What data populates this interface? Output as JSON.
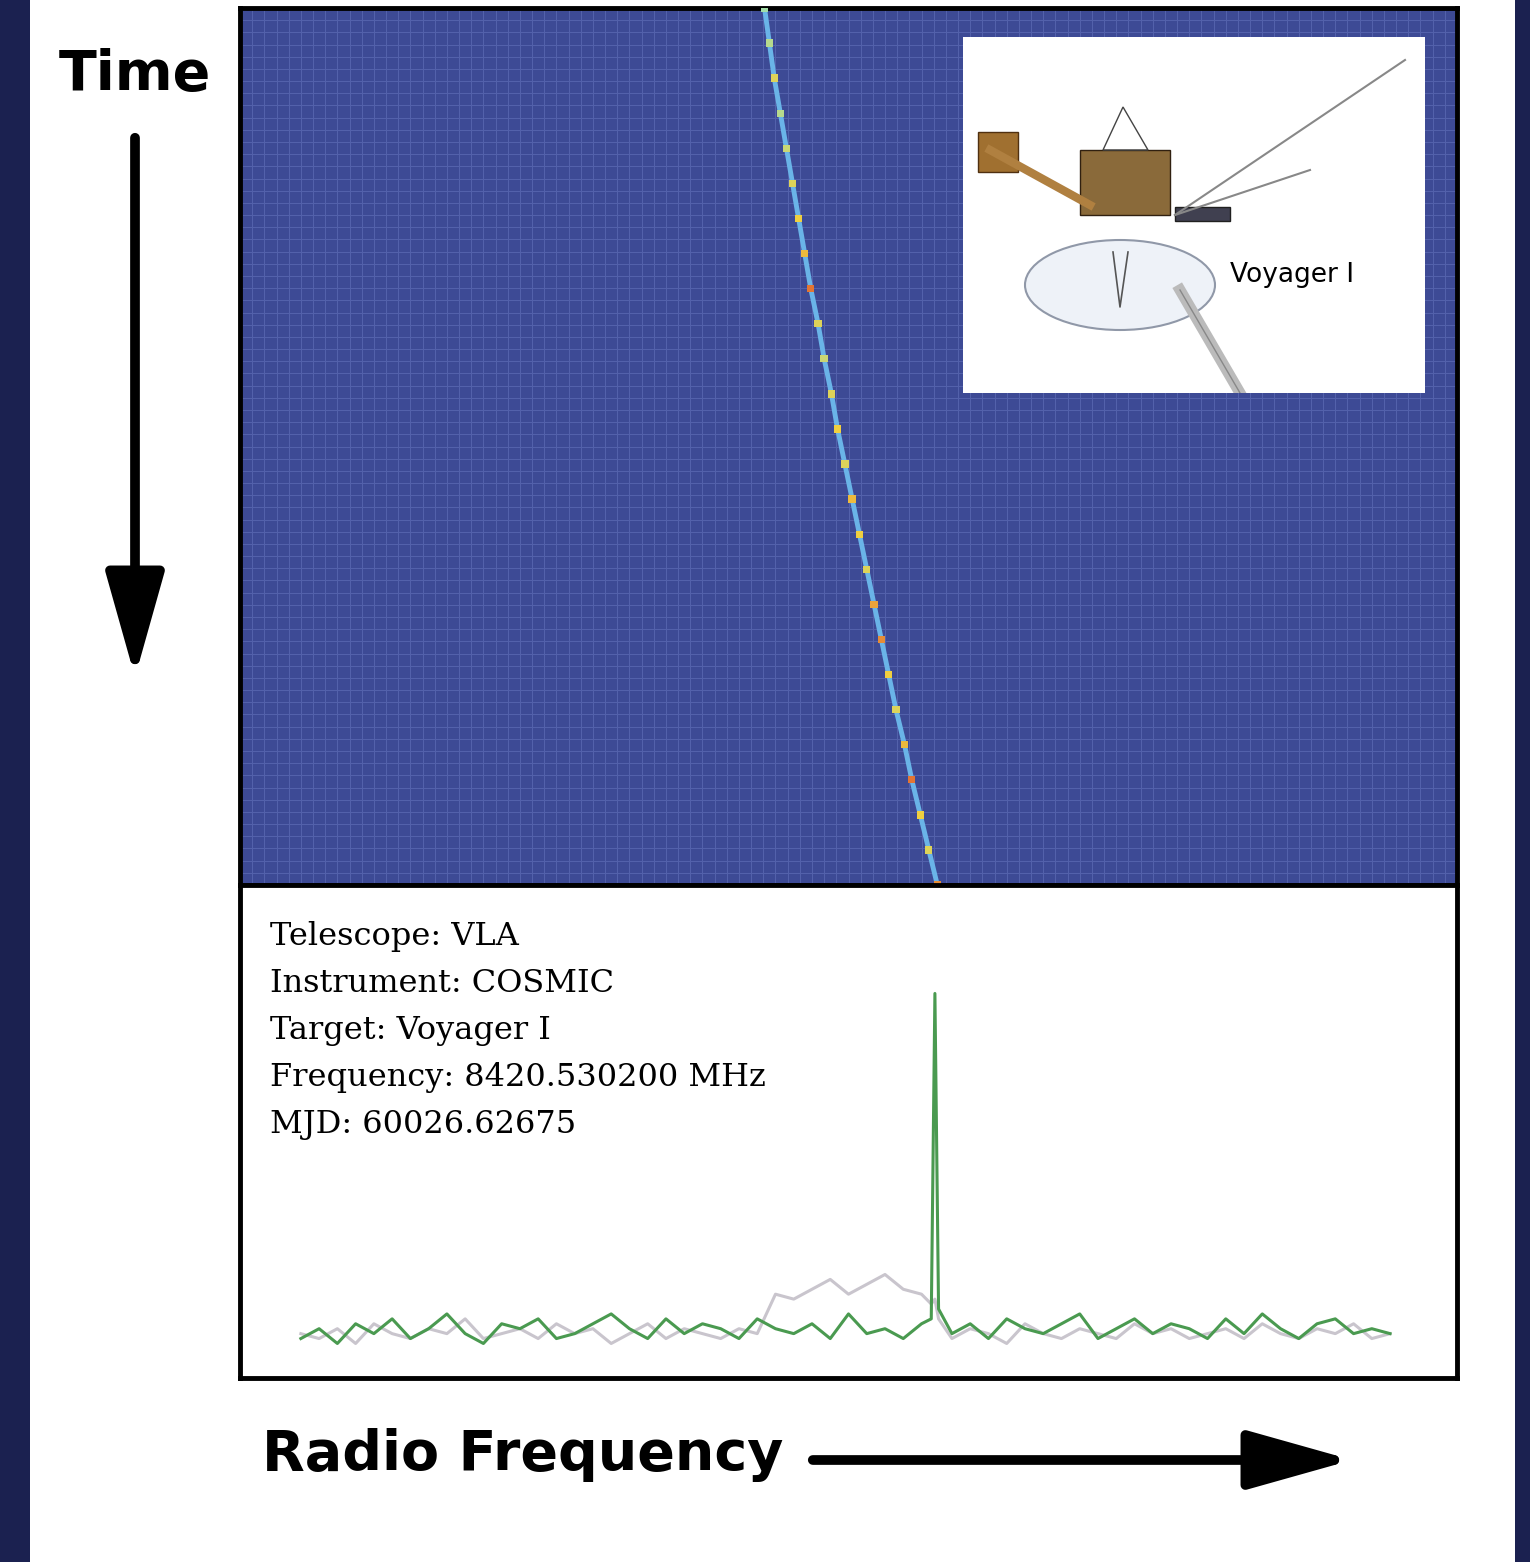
{
  "chart_data": {
    "type": "waterfall",
    "tick_labels": false,
    "axis_labels": {
      "x": "Radio Frequency",
      "y": "Time"
    },
    "inset_label": "Voyager I",
    "annotations": [
      "Telescope: VLA",
      "Instrument: COSMIC",
      "Target: Voyager I",
      "Frequency: 8420.530200 MHz",
      "MJD: 60026.62675"
    ],
    "waterfall": {
      "xlim": [
        0,
        100
      ],
      "ylim": [
        0,
        100
      ],
      "color_range": [
        0,
        1
      ],
      "track": {
        "x": [
          43.1,
          43.5,
          43.9,
          44.4,
          44.9,
          45.4,
          45.9,
          46.4,
          46.9,
          47.5,
          48.0,
          48.6,
          49.1,
          49.7,
          50.3,
          50.9,
          51.5,
          52.1,
          52.7,
          53.3,
          53.9,
          54.6,
          55.2,
          55.9,
          56.6,
          57.3
        ],
        "y": [
          0,
          4,
          8,
          12,
          16,
          20,
          24,
          28,
          32,
          36,
          40,
          44,
          48,
          52,
          56,
          60,
          64,
          68,
          72,
          76,
          80,
          84,
          88,
          92,
          96,
          100
        ],
        "values": [
          0.55,
          0.6,
          0.7,
          0.6,
          0.65,
          0.7,
          0.75,
          0.8,
          0.95,
          0.7,
          0.65,
          0.7,
          0.75,
          0.7,
          0.8,
          0.75,
          0.7,
          0.85,
          0.9,
          0.75,
          0.7,
          0.8,
          0.95,
          0.75,
          0.7,
          0.9
        ]
      }
    },
    "spectrum": {
      "xlim": [
        0,
        100
      ],
      "ylim": [
        0,
        100
      ],
      "x": [
        5,
        6.5,
        8,
        9.5,
        11,
        12.5,
        14,
        15.5,
        17,
        18.5,
        20,
        21.5,
        23,
        24.5,
        26,
        27.5,
        29,
        30.5,
        32,
        33.5,
        35,
        36.5,
        38,
        39.5,
        41,
        42.5,
        44,
        45.5,
        47,
        48.5,
        50,
        51.5,
        53,
        54.5,
        56,
        56.8,
        57.1,
        57.4,
        58.5,
        60,
        61.5,
        63,
        64.5,
        66,
        67.5,
        69,
        70.5,
        72,
        73.5,
        75,
        76.5,
        78,
        79.5,
        81,
        82.5,
        84,
        85.5,
        87,
        88.5,
        90,
        91.5,
        93,
        94.5
      ],
      "series": [
        {
          "color": "#c9c5cd",
          "values": [
            9,
            8,
            10,
            7,
            11,
            9,
            8,
            10,
            9,
            12,
            8,
            9,
            10,
            8,
            11,
            9,
            10,
            7,
            9,
            11,
            8,
            10,
            9,
            8,
            10,
            9,
            17,
            16,
            18,
            20,
            17,
            19,
            21,
            18,
            17,
            15,
            16,
            12,
            8,
            10,
            9,
            7,
            11,
            9,
            8,
            10,
            9,
            8,
            11,
            9,
            10,
            8,
            9,
            10,
            8,
            11,
            9,
            8,
            10,
            9,
            11,
            8,
            9
          ]
        },
        {
          "color": "#4a9a50",
          "values": [
            8,
            10,
            7,
            11,
            9,
            12,
            8,
            10,
            13,
            9,
            7,
            11,
            10,
            12,
            8,
            9,
            11,
            13,
            10,
            8,
            12,
            9,
            11,
            10,
            8,
            12,
            10,
            9,
            11,
            8,
            13,
            9,
            10,
            8,
            11,
            12,
            78,
            14,
            9,
            11,
            8,
            12,
            10,
            9,
            11,
            13,
            8,
            10,
            12,
            9,
            11,
            10,
            8,
            12,
            9,
            13,
            10,
            8,
            11,
            12,
            9,
            10,
            9
          ]
        }
      ]
    }
  }
}
